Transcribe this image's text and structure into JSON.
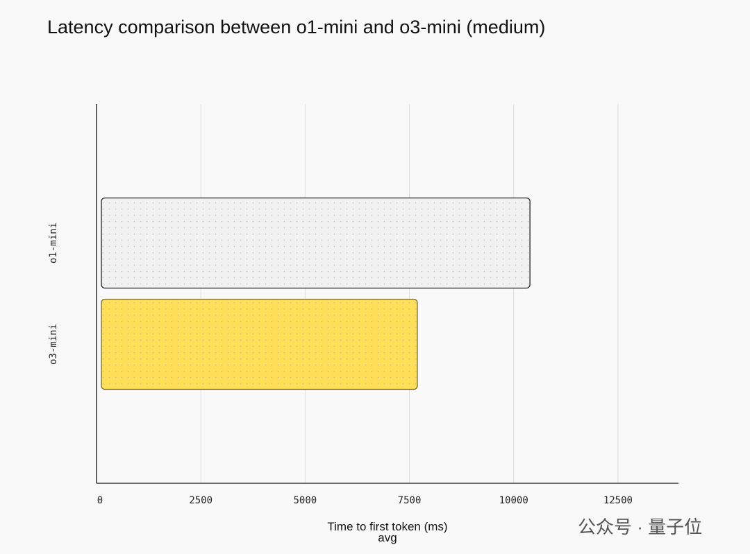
{
  "chart_data": {
    "type": "bar",
    "orientation": "horizontal",
    "title": "Latency comparison between o1-mini and o3-mini (medium)",
    "categories": [
      "o1-mini",
      "o3-mini"
    ],
    "values": [
      10390,
      7690
    ],
    "colors": [
      "#f1f1f1",
      "#ffdf5a"
    ],
    "x_label": "Time to first token (ms) avg",
    "xlim": [
      0,
      14000
    ],
    "xticks": [
      0,
      2500,
      5000,
      7500,
      10000,
      12500
    ],
    "grid": true
  },
  "watermark": "公众号 · 量子位"
}
